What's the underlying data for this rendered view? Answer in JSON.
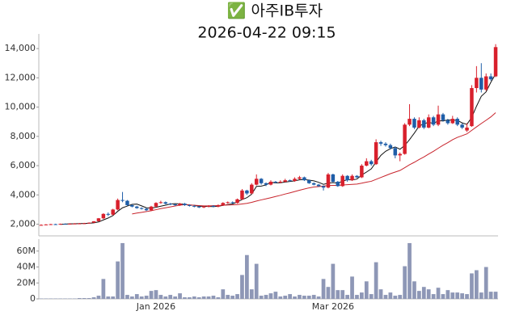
{
  "chart_data": {
    "type": "candlestick",
    "title": "✅ 아주IB투자",
    "subtitle": "2026-04-22 09:15",
    "categories": [
      null,
      null,
      null,
      null,
      null,
      null,
      null,
      null,
      null,
      null,
      null,
      null,
      null,
      null,
      null,
      null,
      null,
      null,
      null,
      null,
      null,
      null,
      null,
      null,
      "Jan 2026",
      null,
      null,
      null,
      null,
      null,
      null,
      null,
      null,
      null,
      null,
      null,
      null,
      null,
      null,
      null,
      null,
      null,
      null,
      null,
      null,
      null,
      null,
      null,
      null,
      null,
      null,
      null,
      null,
      null,
      null,
      null,
      null,
      null,
      null,
      null,
      null,
      "Mar 2026",
      null,
      null,
      null,
      null,
      null,
      null,
      null,
      null,
      null,
      null,
      null,
      null,
      null,
      null,
      null,
      null,
      null,
      null,
      null,
      null,
      null,
      null,
      null,
      null,
      null,
      null,
      null,
      null,
      null,
      null,
      null,
      null,
      null,
      null
    ],
    "open": [
      1940,
      1950,
      1980,
      2000,
      1990,
      2020,
      2010,
      2030,
      2040,
      2050,
      2060,
      2100,
      2200,
      2400,
      2700,
      2650,
      3000,
      3650,
      3600,
      3300,
      3200,
      3100,
      3050,
      2950,
      3200,
      3450,
      3500,
      3400,
      3350,
      3300,
      3400,
      3300,
      3250,
      3200,
      3150,
      3200,
      3250,
      3200,
      3300,
      3450,
      3500,
      3450,
      3700,
      4300,
      4100,
      4700,
      5100,
      4800,
      4700,
      4900,
      4850,
      4900,
      5000,
      4950,
      5100,
      5200,
      5000,
      4800,
      4700,
      4600,
      4500,
      5400,
      4900,
      4600,
      5300,
      5000,
      5300,
      5200,
      6000,
      6300,
      6100,
      7600,
      7500,
      7400,
      7200,
      6700,
      6800,
      8800,
      9200,
      8600,
      9100,
      8600,
      9300,
      8800,
      9500,
      9100,
      8900,
      9200,
      8800,
      8400,
      8700,
      11300,
      12000,
      11200,
      12100,
      12100
    ],
    "high": [
      1990,
      2000,
      2020,
      2030,
      2040,
      2050,
      2060,
      2070,
      2080,
      2090,
      2120,
      2200,
      2420,
      2750,
      2800,
      3050,
      3750,
      4200,
      3650,
      3350,
      3250,
      3150,
      3100,
      3250,
      3500,
      3600,
      3550,
      3450,
      3400,
      3450,
      3450,
      3350,
      3300,
      3250,
      3250,
      3300,
      3300,
      3350,
      3500,
      3550,
      3550,
      3750,
      4400,
      4350,
      4800,
      5400,
      5150,
      4850,
      5000,
      4950,
      5000,
      5100,
      5050,
      5200,
      5300,
      5250,
      5050,
      4850,
      4750,
      4650,
      5500,
      5450,
      4950,
      5400,
      5350,
      5400,
      5350,
      6100,
      6500,
      6400,
      7800,
      7700,
      7600,
      7500,
      7300,
      6900,
      8900,
      10200,
      9300,
      9300,
      9200,
      9500,
      9400,
      10100,
      9600,
      9200,
      9400,
      9300,
      8900,
      8900,
      11500,
      12800,
      13000,
      12300,
      12300,
      14300
    ],
    "low": [
      1900,
      1920,
      1940,
      1960,
      1970,
      1980,
      1990,
      2000,
      2010,
      2020,
      2040,
      2080,
      2180,
      2350,
      2550,
      2600,
      2950,
      3500,
      3250,
      3150,
      3050,
      3000,
      2900,
      2900,
      3150,
      3400,
      3350,
      3300,
      3250,
      3250,
      3250,
      3200,
      3150,
      3100,
      3100,
      3150,
      3150,
      3150,
      3250,
      3400,
      3400,
      3400,
      3650,
      4000,
      4050,
      4650,
      4700,
      4600,
      4650,
      4800,
      4800,
      4850,
      4900,
      4900,
      5050,
      4950,
      4750,
      4650,
      4550,
      4300,
      4450,
      4850,
      4550,
      4550,
      4900,
      4950,
      5150,
      5150,
      5950,
      6000,
      6050,
      7350,
      7300,
      7100,
      6500,
      6300,
      6750,
      8700,
      8500,
      8550,
      8500,
      8550,
      8700,
      8700,
      9000,
      8800,
      8850,
      8700,
      8500,
      8300,
      8650,
      11000,
      11000,
      11100,
      11800,
      12050
    ],
    "close": [
      1950,
      1980,
      2000,
      1990,
      2020,
      2010,
      2030,
      2040,
      2050,
      2060,
      2100,
      2200,
      2400,
      2700,
      2650,
      3000,
      3650,
      3600,
      3300,
      3200,
      3100,
      3050,
      2950,
      3200,
      3450,
      3500,
      3400,
      3350,
      3300,
      3400,
      3300,
      3250,
      3200,
      3150,
      3200,
      3250,
      3200,
      3300,
      3450,
      3500,
      3450,
      3700,
      4300,
      4100,
      4700,
      5100,
      4800,
      4700,
      4900,
      4850,
      4900,
      5000,
      4950,
      5100,
      5200,
      5000,
      4800,
      4700,
      4600,
      4500,
      5400,
      4900,
      4600,
      5300,
      5000,
      5300,
      5200,
      6000,
      6300,
      6100,
      7600,
      7500,
      7400,
      7200,
      6700,
      6800,
      8800,
      9200,
      8600,
      9100,
      8600,
      9300,
      8800,
      9500,
      9100,
      8900,
      9200,
      8800,
      8600,
      8600,
      11300,
      12000,
      11200,
      12100,
      11900,
      14100
    ],
    "up_color": "#d8202c",
    "down_color": "#1f5ea8",
    "series": [
      {
        "color": "#111111",
        "values": [
          null,
          null,
          null,
          null,
          1990,
          2010,
          2020,
          2030,
          2040,
          2050,
          2060,
          2090,
          2150,
          2290,
          2420,
          2590,
          2880,
          3120,
          3240,
          3350,
          3370,
          3250,
          3120,
          3100,
          3150,
          3230,
          3300,
          3380,
          3400,
          3390,
          3350,
          3310,
          3290,
          3220,
          3220,
          3210,
          3200,
          3220,
          3280,
          3340,
          3380,
          3520,
          3680,
          3810,
          4050,
          4580,
          4600,
          4680,
          4860,
          4820,
          4830,
          4880,
          4920,
          4960,
          5030,
          5050,
          5010,
          4960,
          4860,
          4720,
          4800,
          4840,
          4800,
          4940,
          5040,
          5020,
          5080,
          5360,
          5560,
          5780,
          6240,
          6700,
          6980,
          7160,
          7280,
          7120,
          7380,
          7780,
          8220,
          8700,
          8860,
          8960,
          8880,
          9060,
          9060,
          9120,
          9100,
          9100,
          8920,
          8820,
          9300,
          10060,
          10740,
          11040,
          11700,
          12260
        ]
      },
      {
        "color": "#c8242c",
        "values": [
          null,
          null,
          null,
          null,
          null,
          null,
          null,
          null,
          null,
          null,
          null,
          null,
          null,
          null,
          null,
          null,
          null,
          null,
          null,
          2700,
          2760,
          2810,
          2860,
          2920,
          2990,
          3060,
          3120,
          3180,
          3240,
          3300,
          3330,
          3310,
          3290,
          3270,
          3250,
          3250,
          3260,
          3270,
          3290,
          3310,
          3320,
          3340,
          3380,
          3420,
          3490,
          3580,
          3660,
          3730,
          3810,
          3890,
          3970,
          4060,
          4140,
          4230,
          4320,
          4400,
          4480,
          4540,
          4570,
          4600,
          4640,
          4650,
          4650,
          4680,
          4700,
          4720,
          4740,
          4800,
          4870,
          4930,
          5060,
          5190,
          5320,
          5450,
          5560,
          5670,
          5860,
          6060,
          6230,
          6420,
          6590,
          6790,
          6980,
          7190,
          7390,
          7570,
          7770,
          7930,
          8050,
          8170,
          8410,
          8650,
          8880,
          9100,
          9330,
          9620
        ]
      }
    ],
    "ylim": [
      1200,
      15000
    ],
    "yticks": [
      {
        "value": 2000,
        "label": "2,000"
      },
      {
        "value": 4000,
        "label": "4,000"
      },
      {
        "value": 6000,
        "label": "6,000"
      },
      {
        "value": 8000,
        "label": "8,000"
      },
      {
        "value": 10000,
        "label": "10,000"
      },
      {
        "value": 12000,
        "label": "12,000"
      },
      {
        "value": 14000,
        "label": "14,000"
      }
    ],
    "volume": {
      "color": "#8e97b6",
      "values": [
        500000,
        500000,
        500000,
        500000,
        500000,
        500000,
        500000,
        500000,
        1000000,
        1000000,
        1000000,
        2000000,
        4000000,
        25000000,
        3000000,
        3000000,
        47000000,
        70000000,
        5000000,
        3000000,
        6000000,
        3000000,
        4000000,
        10000000,
        11000000,
        5000000,
        3000000,
        5000000,
        3000000,
        7000000,
        2000000,
        2000000,
        3000000,
        2000000,
        3000000,
        3000000,
        4000000,
        2000000,
        12000000,
        5000000,
        4000000,
        6000000,
        30000000,
        55000000,
        12000000,
        44000000,
        4000000,
        5000000,
        7000000,
        9000000,
        3000000,
        4000000,
        6000000,
        3000000,
        5000000,
        4000000,
        4000000,
        5000000,
        3000000,
        25000000,
        15000000,
        44000000,
        11000000,
        11000000,
        5000000,
        28000000,
        5000000,
        8000000,
        22000000,
        6000000,
        46000000,
        12000000,
        5000000,
        8000000,
        4000000,
        5000000,
        41000000,
        70000000,
        22000000,
        10000000,
        15000000,
        12000000,
        6000000,
        14000000,
        6000000,
        11000000,
        8000000,
        8000000,
        7000000,
        6000000,
        32000000,
        36000000,
        8000000,
        40000000,
        9000000,
        9000000
      ],
      "ylim": [
        0,
        75000000
      ],
      "yticks": [
        {
          "value": 0,
          "label": "0"
        },
        {
          "value": 20000000,
          "label": "20M"
        },
        {
          "value": 40000000,
          "label": "40M"
        },
        {
          "value": 60000000,
          "label": "60M"
        }
      ]
    }
  }
}
